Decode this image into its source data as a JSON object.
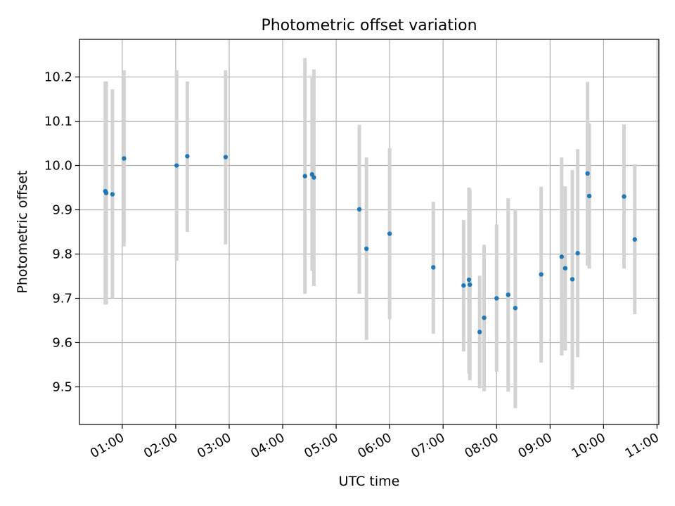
{
  "chart_data": {
    "type": "scatter",
    "title": "Photometric offset variation",
    "xlabel": "UTC time",
    "ylabel": "Photometric offset",
    "xlim": [
      "00:12",
      "11:02"
    ],
    "ylim": [
      9.415,
      10.285
    ],
    "x_ticks": [
      "01:00",
      "02:00",
      "03:00",
      "04:00",
      "05:00",
      "06:00",
      "07:00",
      "08:00",
      "09:00",
      "10:00",
      "11:00"
    ],
    "y_ticks": [
      "9.5",
      "9.6",
      "9.7",
      "9.8",
      "9.9",
      "10.0",
      "10.1",
      "10.2"
    ],
    "grid": true,
    "colors": {
      "points": "#1f77b4",
      "error_bars": "#d3d3d3",
      "grid": "#b0b0b0"
    },
    "series": [
      {
        "points": [
          {
            "x": "00:41",
            "y": 9.942,
            "err_low": 9.686,
            "err_high": 10.19
          },
          {
            "x": "00:42",
            "y": 9.938,
            "err_low": 9.686,
            "err_high": 10.19
          },
          {
            "x": "00:49",
            "y": 9.935,
            "err_low": 9.7,
            "err_high": 10.172
          },
          {
            "x": "01:02",
            "y": 10.016,
            "err_low": 9.817,
            "err_high": 10.215
          },
          {
            "x": "02:01",
            "y": 10.0,
            "err_low": 9.785,
            "err_high": 10.215
          },
          {
            "x": "02:13",
            "y": 10.021,
            "err_low": 9.85,
            "err_high": 10.19
          },
          {
            "x": "02:56",
            "y": 10.019,
            "err_low": 9.822,
            "err_high": 10.215
          },
          {
            "x": "04:25",
            "y": 9.976,
            "err_low": 9.71,
            "err_high": 10.243
          },
          {
            "x": "04:33",
            "y": 9.98,
            "err_low": 9.762,
            "err_high": 10.198
          },
          {
            "x": "04:35",
            "y": 9.973,
            "err_low": 9.728,
            "err_high": 10.217
          },
          {
            "x": "05:26",
            "y": 9.901,
            "err_low": 9.71,
            "err_high": 10.092
          },
          {
            "x": "05:34",
            "y": 9.812,
            "err_low": 9.606,
            "err_high": 10.018
          },
          {
            "x": "06:00",
            "y": 9.846,
            "err_low": 9.653,
            "err_high": 10.039
          },
          {
            "x": "06:49",
            "y": 9.77,
            "err_low": 9.62,
            "err_high": 9.918
          },
          {
            "x": "07:23",
            "y": 9.729,
            "err_low": 9.58,
            "err_high": 9.877
          },
          {
            "x": "07:29",
            "y": 9.742,
            "err_low": 9.53,
            "err_high": 9.95
          },
          {
            "x": "07:30",
            "y": 9.731,
            "err_low": 9.515,
            "err_high": 9.946
          },
          {
            "x": "07:41",
            "y": 9.624,
            "err_low": 9.497,
            "err_high": 9.751
          },
          {
            "x": "07:46",
            "y": 9.656,
            "err_low": 9.49,
            "err_high": 9.821
          },
          {
            "x": "08:00",
            "y": 9.7,
            "err_low": 9.534,
            "err_high": 9.867
          },
          {
            "x": "08:13",
            "y": 9.708,
            "err_low": 9.489,
            "err_high": 9.926
          },
          {
            "x": "08:21",
            "y": 9.678,
            "err_low": 9.452,
            "err_high": 9.902
          },
          {
            "x": "08:50",
            "y": 9.754,
            "err_low": 9.555,
            "err_high": 9.952
          },
          {
            "x": "09:13",
            "y": 9.794,
            "err_low": 9.571,
            "err_high": 10.018
          },
          {
            "x": "09:17",
            "y": 9.768,
            "err_low": 9.582,
            "err_high": 9.953
          },
          {
            "x": "09:25",
            "y": 9.743,
            "err_low": 9.494,
            "err_high": 9.99
          },
          {
            "x": "09:31",
            "y": 9.802,
            "err_low": 9.567,
            "err_high": 10.037
          },
          {
            "x": "09:42",
            "y": 9.982,
            "err_low": 9.774,
            "err_high": 10.189
          },
          {
            "x": "09:44",
            "y": 9.931,
            "err_low": 9.767,
            "err_high": 10.095
          },
          {
            "x": "10:23",
            "y": 9.93,
            "err_low": 9.767,
            "err_high": 10.093
          },
          {
            "x": "10:35",
            "y": 9.833,
            "err_low": 9.664,
            "err_high": 10.003
          }
        ]
      }
    ]
  }
}
